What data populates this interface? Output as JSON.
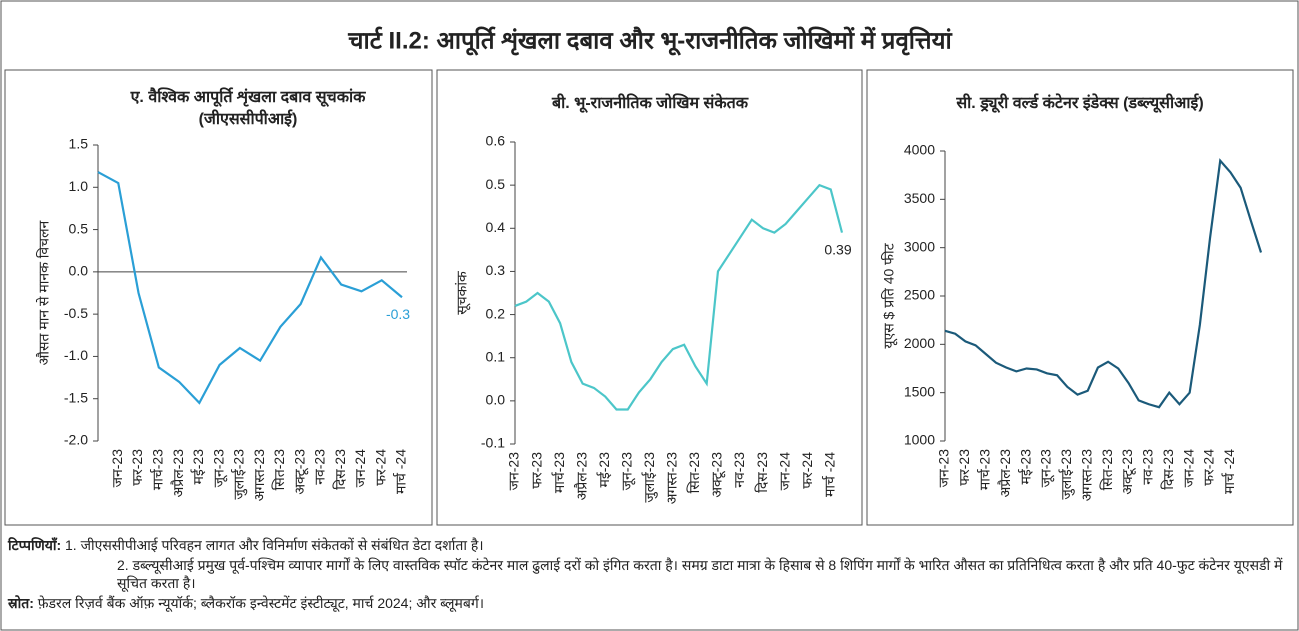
{
  "title": "चार्ट II.2: आपूर्ति शृंखला दबाव और भू-राजनीतिक जोखिमों में प्रवृत्तियां",
  "chart_data": [
    {
      "type": "line",
      "title": [
        "ए. वैश्विक आपूर्ति शृंखला दबाव सूचकांक",
        "(जीएससीपीआई)"
      ],
      "y_label": "औसत मान से मानक विचलन",
      "color": "#2a9fd6",
      "zero_line": true,
      "categories": [
        null,
        "जन-23",
        "फर-23",
        "मार्च-23",
        "अप्रैल-23",
        "मई-23",
        "जून-23",
        "जुलाई-23",
        "अगस्त-23",
        "सित-23",
        "अक्टू-23",
        "नव-23",
        "दिस-23",
        "जन-24",
        "फर-24",
        "मार्च -24"
      ],
      "values": [
        1.18,
        1.05,
        -0.25,
        -1.13,
        -1.3,
        -1.55,
        -1.1,
        -0.9,
        -1.05,
        -0.65,
        -0.38,
        0.17,
        -0.15,
        -0.23,
        -0.1,
        -0.3
      ],
      "value_labels": [
        null,
        null,
        null,
        null,
        null,
        null,
        null,
        null,
        null,
        null,
        null,
        null,
        null,
        null,
        null,
        "-0.3"
      ],
      "ylim": [
        -2,
        1.5
      ],
      "yticks": [
        {
          "value": -2,
          "label": "-2.0"
        },
        -1.5,
        {
          "value": -1,
          "label": "-1.0"
        },
        -0.5,
        {
          "value": 0,
          "label": "0.0"
        },
        0.5,
        {
          "value": 1,
          "label": "1.0"
        },
        1.5
      ]
    },
    {
      "type": "line",
      "title": [
        "बी. भू-राजनीतिक जोखिम संकेतक"
      ],
      "y_label": "सूचकांक",
      "color": "#4cc6c9",
      "zero_line": false,
      "categories": [
        "जन-23",
        null,
        "फर-23",
        null,
        "मार्च-23",
        null,
        "अप्रैल-23",
        null,
        "मई-23",
        null,
        "जून-23",
        null,
        "जुलाई-23",
        null,
        "अगस्त-23",
        null,
        "सित-23",
        null,
        "अक्टू-23",
        null,
        "नव-23",
        null,
        "दिस-23",
        null,
        "जन-24",
        null,
        "फर-24",
        null,
        "मार्च -24",
        null
      ],
      "values": [
        0.22,
        0.23,
        0.25,
        0.23,
        0.18,
        0.09,
        0.04,
        0.03,
        0.01,
        -0.02,
        -0.02,
        0.02,
        0.05,
        0.09,
        0.12,
        0.13,
        0.08,
        0.04,
        0.3,
        0.34,
        0.38,
        0.42,
        0.4,
        0.39,
        0.41,
        0.44,
        0.47,
        0.5,
        0.49,
        0.39
      ],
      "value_labels": [
        null,
        null,
        null,
        null,
        null,
        null,
        null,
        null,
        null,
        null,
        null,
        null,
        null,
        null,
        null,
        null,
        null,
        null,
        null,
        null,
        null,
        null,
        null,
        null,
        null,
        null,
        null,
        null,
        null,
        "0.39"
      ],
      "ylim": [
        -0.1,
        0.6
      ],
      "yticks": [
        -0.1,
        {
          "value": 0,
          "label": "0.0"
        },
        0.1,
        0.2,
        0.3,
        0.4,
        0.5,
        0.6
      ]
    },
    {
      "type": "line",
      "title": [
        "सी. ड्र्यूरी वर्ल्ड कंटेनर इंडेक्स (डब्ल्यूसीआई)"
      ],
      "y_label": "यूएस $ प्रति 40 फीट",
      "color": "#1b5a7a",
      "zero_line": false,
      "categories": [
        "जन-23",
        null,
        "फर-23",
        null,
        "मार्च-23",
        null,
        "अप्रैल-23",
        null,
        "मई-23",
        null,
        "जून-23",
        null,
        "जुलाई-23",
        null,
        "अगस्त-23",
        null,
        "सित-23",
        null,
        "अक्टू-23",
        null,
        "नव-23",
        null,
        "दिस-23",
        null,
        "जन-24",
        null,
        "फर-24",
        null,
        "मार्च -24",
        null,
        null,
        null
      ],
      "values": [
        2140,
        2110,
        2030,
        1990,
        1900,
        1810,
        1760,
        1720,
        1750,
        1740,
        1700,
        1680,
        1560,
        1480,
        1520,
        1760,
        1820,
        1750,
        1600,
        1420,
        1380,
        1350,
        1500,
        1380,
        1500,
        2200,
        3100,
        3900,
        3780,
        3620,
        3280,
        2950
      ],
      "ylim": [
        1000,
        4000
      ],
      "yticks": [
        1000,
        1500,
        2000,
        2500,
        3000,
        3500,
        4000
      ]
    }
  ],
  "notes_label": "टिप्पणियाँ:",
  "notes": [
    "1. जीएससीपीआई परिवहन लागत और विनिर्माण संकेतकों से संबंधित डेटा दर्शाता है।",
    "2. डब्ल्यूसीआई प्रमुख पूर्व-पश्चिम व्यापार मार्गों के लिए वास्तविक स्पॉट कंटेनर माल ढुलाई दरों को इंगित करता है। समग्र डाटा मात्रा के हिसाब से 8 शिपिंग मार्गों के भारित औसत का प्रतिनिधित्व करता है और प्रति 40-फुट कंटेनर यूएसडी में सूचित करता है।"
  ],
  "source_label": "स्रोत:",
  "source": "फ़ेडरल रिज़र्व बैंक ऑफ़ न्यूयॉर्क; ब्लैकरॉक इन्वेस्टमेंट इंस्टीट्यूट, मार्च 2024; और ब्लूमबर्ग।"
}
